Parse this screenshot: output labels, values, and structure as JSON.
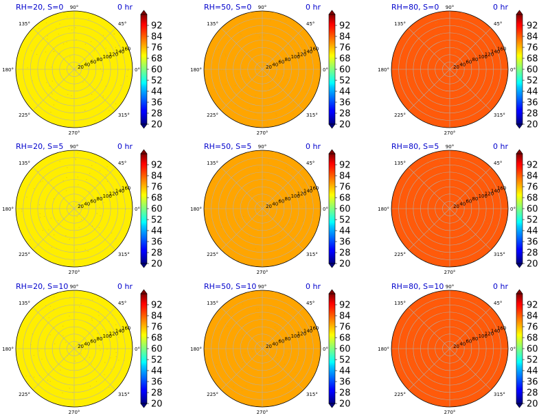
{
  "figure": {
    "title_color": "#0000cc",
    "colormap": "jet",
    "colorbar": {
      "ticks": [
        "92",
        "84",
        "76",
        "68",
        "60",
        "52",
        "44",
        "36",
        "28",
        "20"
      ],
      "range": [
        20,
        100
      ]
    },
    "angle_labels": [
      "0°",
      "45°",
      "90°",
      "135°",
      "180°",
      "225°",
      "270°",
      "315°"
    ],
    "radial_labels": [
      "20",
      "40",
      "60",
      "80",
      "100",
      "120",
      "140",
      "160"
    ]
  },
  "chart_data": [
    {
      "type": "polar-heatmap",
      "title": "RH=20, S=0",
      "time_label": "0 hr",
      "fill_value": 66,
      "fill_color": "#ffee00",
      "rlim": [
        0,
        160
      ]
    },
    {
      "type": "polar-heatmap",
      "title": "RH=50, S=0",
      "time_label": "0 hr",
      "fill_value": 76,
      "fill_color": "#ffa500",
      "rlim": [
        0,
        160
      ]
    },
    {
      "type": "polar-heatmap",
      "title": "RH=80, S=0",
      "time_label": "0 hr",
      "fill_value": 84,
      "fill_color": "#ff5a0a",
      "rlim": [
        0,
        160
      ]
    },
    {
      "type": "polar-heatmap",
      "title": "RH=20, S=5",
      "time_label": "0 hr",
      "fill_value": 66,
      "fill_color": "#ffee00",
      "rlim": [
        0,
        160
      ]
    },
    {
      "type": "polar-heatmap",
      "title": "RH=50, S=5",
      "time_label": "0 hr",
      "fill_value": 76,
      "fill_color": "#ffa500",
      "rlim": [
        0,
        160
      ]
    },
    {
      "type": "polar-heatmap",
      "title": "RH=80, S=5",
      "time_label": "0 hr",
      "fill_value": 84,
      "fill_color": "#ff5a0a",
      "rlim": [
        0,
        160
      ]
    },
    {
      "type": "polar-heatmap",
      "title": "RH=20, S=10",
      "time_label": "0 hr",
      "fill_value": 66,
      "fill_color": "#ffee00",
      "rlim": [
        0,
        160
      ]
    },
    {
      "type": "polar-heatmap",
      "title": "RH=50, S=10",
      "time_label": "0 hr",
      "fill_value": 76,
      "fill_color": "#ffa500",
      "rlim": [
        0,
        160
      ]
    },
    {
      "type": "polar-heatmap",
      "title": "RH=80, S=10",
      "time_label": "0 hr",
      "fill_value": 84,
      "fill_color": "#ff5a0a",
      "rlim": [
        0,
        160
      ]
    }
  ]
}
